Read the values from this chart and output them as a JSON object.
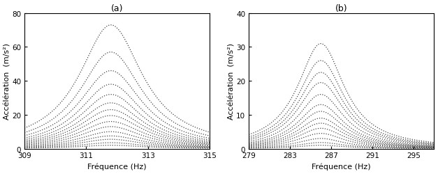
{
  "subplot_a": {
    "title": "(a)",
    "xlabel": "Fréquence (Hz)",
    "ylabel": "Accélération  (m/s²)",
    "xmin": 309,
    "xmax": 315,
    "ymin": 0,
    "ymax": 80,
    "peak_freq": 311.8,
    "xticks": [
      309,
      311,
      313,
      315
    ],
    "yticks": [
      0,
      20,
      40,
      60,
      80
    ],
    "peak_amplitudes": [
      2.0,
      3.5,
      5.5,
      7.5,
      10.0,
      13.0,
      16.0,
      19.5,
      23.0,
      27.0,
      32.0,
      38.0,
      46.0,
      57.0,
      73.0
    ],
    "bandwidth": 2.5,
    "n_points": 120
  },
  "subplot_b": {
    "title": "(b)",
    "xlabel": "Fréquence (Hz)",
    "ylabel": "Accélération  (m/s²)",
    "xmin": 279,
    "xmax": 297,
    "ymin": 0,
    "ymax": 40,
    "peak_freq": 286.0,
    "xticks": [
      279,
      283,
      287,
      291,
      295
    ],
    "yticks": [
      0,
      10,
      20,
      30,
      40
    ],
    "peak_amplitudes": [
      1.0,
      1.8,
      3.0,
      4.5,
      6.0,
      7.5,
      9.0,
      11.0,
      13.0,
      16.0,
      19.5,
      22.5,
      26.0,
      31.0
    ],
    "bandwidth": 5.5,
    "n_points": 120
  },
  "dot_color": "#444444",
  "dot_size": 0.8,
  "background": "#ffffff"
}
